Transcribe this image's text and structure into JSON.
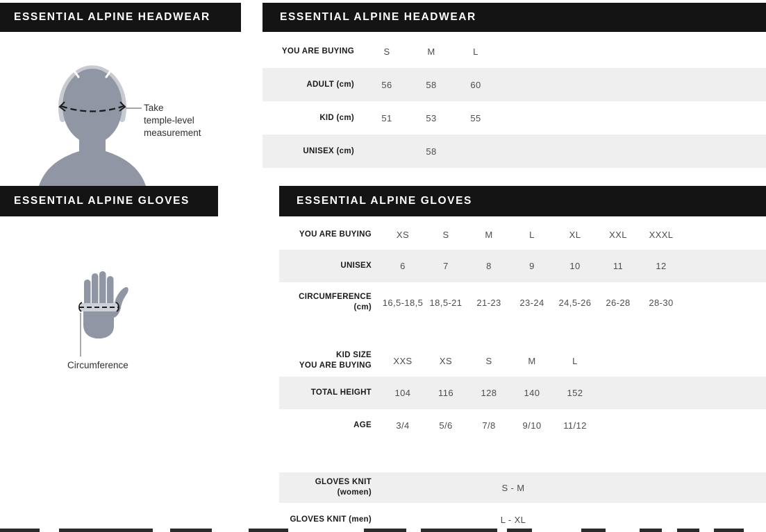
{
  "headwear": {
    "left_title": "ESSENTIAL ALPINE HEADWEAR",
    "right_title": "ESSENTIAL ALPINE HEADWEAR",
    "annotation": "Take\ntemple-level\nmeasurement",
    "table": {
      "header_label": "YOU ARE BUYING",
      "header_cols": [
        "S",
        "M",
        "L"
      ],
      "rows": [
        {
          "label": "ADULT (cm)",
          "values": [
            "56",
            "58",
            "60"
          ]
        },
        {
          "label": "KID (cm)",
          "values": [
            "51",
            "53",
            "55"
          ]
        },
        {
          "label": "UNISEX (cm)",
          "values": [
            "",
            "58",
            ""
          ]
        }
      ]
    }
  },
  "gloves": {
    "left_title": "ESSENTIAL ALPINE GLOVES",
    "right_title": "ESSENTIAL ALPINE GLOVES",
    "annotation": "Circumference",
    "adult_table": {
      "header_label": "YOU ARE BUYING",
      "header_cols": [
        "XS",
        "S",
        "M",
        "L",
        "XL",
        "XXL",
        "XXXL"
      ],
      "rows": [
        {
          "label": "UNISEX",
          "values": [
            "6",
            "7",
            "8",
            "9",
            "10",
            "11",
            "12"
          ]
        },
        {
          "label": "CIRCUMFERENCE\n(cm)",
          "values": [
            "16,5-18,5",
            "18,5-21",
            "21-23",
            "23-24",
            "24,5-26",
            "26-28",
            "28-30"
          ]
        }
      ]
    },
    "kid_table": {
      "header_label": "KID SIZE\nYOU ARE BUYING",
      "header_cols": [
        "XXS",
        "XS",
        "S",
        "M",
        "L"
      ],
      "rows": [
        {
          "label": "TOTAL HEIGHT",
          "values": [
            "104",
            "116",
            "128",
            "140",
            "152"
          ]
        },
        {
          "label": "AGE",
          "values": [
            "3/4",
            "5/6",
            "7/8",
            "9/10",
            "11/12"
          ]
        }
      ]
    },
    "knit_table": {
      "rows": [
        {
          "label": "GLOVES KNIT (women)",
          "value": "S - M"
        },
        {
          "label": "GLOVES KNIT (men)",
          "value": "L - XL"
        }
      ]
    }
  },
  "colors": {
    "bar": "#141414",
    "row_shaded": "#f0efef",
    "label_text": "#1a1a1a",
    "value_text": "#4d4d4d",
    "figure_body": "#9196a4",
    "figure_band": "#cdd0d6"
  },
  "decor": {
    "bottom_strip_segments": [
      [
        0,
        57
      ],
      [
        85,
        135
      ],
      [
        245,
        60
      ],
      [
        358,
        57
      ],
      [
        524,
        61
      ],
      [
        606,
        110
      ],
      [
        730,
        36
      ],
      [
        837,
        35
      ],
      [
        921,
        32
      ],
      [
        975,
        32
      ],
      [
        1028,
        43
      ]
    ]
  }
}
